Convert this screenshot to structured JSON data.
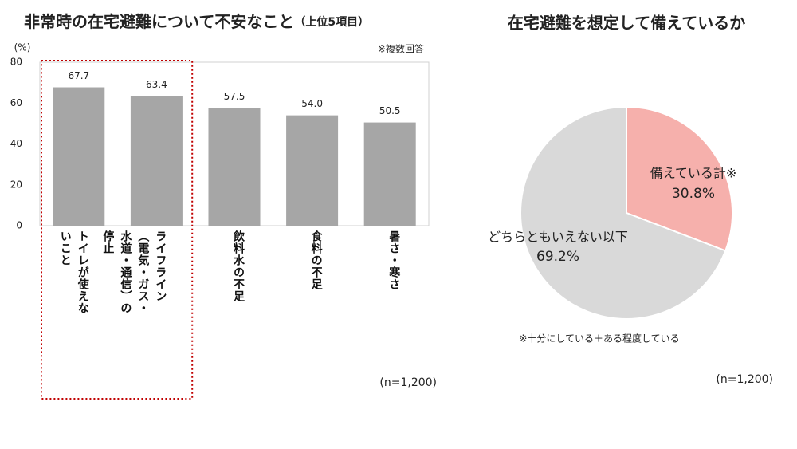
{
  "chart_data": [
    {
      "type": "bar",
      "title": "非常時の在宅避難について不安なこと",
      "subtitle": "（上位5項目）",
      "y_label": "(%)",
      "note": "※複数回答",
      "sample": "(n=1,200)",
      "categories": [
        "トイレが使えないこと",
        "ライフライン（電気・ガス・水道・通信）の停止",
        "飲料水の不足",
        "食料の不足",
        "暑さ・寒さ"
      ],
      "values": [
        67.7,
        63.4,
        57.5,
        54.0,
        50.5
      ],
      "value_labels": [
        "67.7",
        "63.4",
        "57.5",
        "54.0",
        "50.5"
      ],
      "color": "#a6a6a6",
      "ylim": [
        0,
        80
      ],
      "yticks": [
        0,
        20,
        40,
        60,
        80
      ],
      "grid": false
    },
    {
      "type": "pie",
      "title": "在宅避難を想定して備えているか",
      "categories": [
        "備えている計※",
        "どちらともいえない以下"
      ],
      "values": [
        30.8,
        69.2
      ],
      "value_labels": [
        "30.8%",
        "69.2%"
      ],
      "colors": [
        "#f6b0ac",
        "#d9d9d9"
      ],
      "note": "※十分にしている＋ある程度している",
      "sample": "(n=1,200)"
    }
  ]
}
